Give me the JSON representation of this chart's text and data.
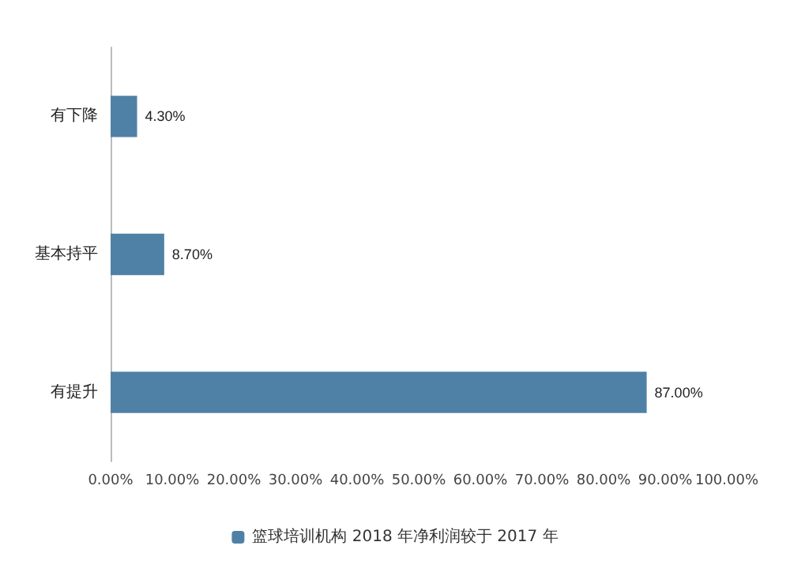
{
  "chart_data": {
    "type": "bar",
    "orientation": "horizontal",
    "categories": [
      "有下降",
      "基本持平",
      "有提升"
    ],
    "series": [
      {
        "name": "篮球培训机构 2018 年净利润较于 2017 年",
        "color": "#4f81a6",
        "values": [
          4.3,
          8.7,
          87.0
        ],
        "value_labels": [
          "4.30%",
          "8.70%",
          "87.00%"
        ]
      }
    ],
    "xlim": [
      0,
      100
    ],
    "xticks": [
      {
        "value": 0,
        "label": "0.00%"
      },
      {
        "value": 10,
        "label": "10.00%"
      },
      {
        "value": 20,
        "label": "20.00%"
      },
      {
        "value": 30,
        "label": "30.00%"
      },
      {
        "value": 40,
        "label": "40.00%"
      },
      {
        "value": 50,
        "label": "50.00%"
      },
      {
        "value": 60,
        "label": "60.00%"
      },
      {
        "value": 70,
        "label": "70.00%"
      },
      {
        "value": 80,
        "label": "80.00%"
      },
      {
        "value": 90,
        "label": "90.00%"
      },
      {
        "value": 100,
        "label": "100.00%"
      }
    ],
    "legend": "bottom"
  }
}
